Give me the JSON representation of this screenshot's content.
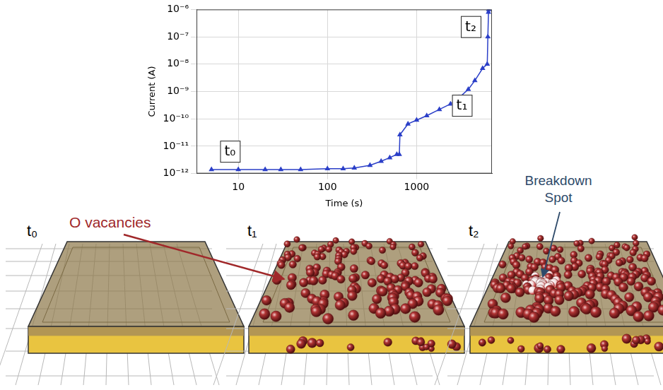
{
  "chart_data": {
    "type": "line",
    "x_label": "Time (s)",
    "y_label": "Current (A)",
    "log": true,
    "grid": true,
    "xlim": [
      3.4,
      7000
    ],
    "xticks": [
      10,
      100,
      1000
    ],
    "ylim": [
      1e-12,
      1e-06
    ],
    "yticks": [
      {
        "value": 1e-12,
        "label": "10⁻¹²"
      },
      {
        "value": 1e-11,
        "label": "10⁻¹¹"
      },
      {
        "value": 1e-10,
        "label": "10⁻¹⁰"
      },
      {
        "value": 1e-09,
        "label": "10⁻⁹"
      },
      {
        "value": 1e-08,
        "label": "10⁻⁸"
      },
      {
        "value": 1e-07,
        "label": "10⁻⁷"
      },
      {
        "value": 1e-06,
        "label": "10⁻⁶"
      }
    ],
    "x": [
      5,
      10,
      20,
      30,
      50,
      100,
      150,
      200,
      300,
      400,
      500,
      600,
      640,
      650,
      800,
      1000,
      1300,
      1800,
      2400,
      3000,
      3800,
      4500,
      5500,
      6200,
      6300,
      6400,
      6450
    ],
    "values": [
      1.4e-12,
      1.4e-12,
      1.4e-12,
      1.4e-12,
      1.4e-12,
      1.5e-12,
      1.5e-12,
      1.6e-12,
      2e-12,
      2.8e-12,
      3.8e-12,
      5e-12,
      5e-12,
      2.6e-11,
      6.5e-11,
      9e-11,
      1.3e-10,
      2.2e-10,
      3.5e-10,
      6e-10,
      1.2e-09,
      2.5e-09,
      7e-09,
      1e-08,
      1e-07,
      8e-07,
      1e-06
    ],
    "color": "#2b3fc8",
    "marker": "triangle",
    "annotations": [
      "t₀",
      "t₁",
      "t₂"
    ]
  },
  "diagram": {
    "panels": [
      {
        "label": "t₀"
      },
      {
        "label": "t₁"
      },
      {
        "label": "t₂"
      }
    ],
    "annotations": [
      {
        "text": "O vacancies",
        "color": "#a0282a"
      },
      {
        "text": "Breakdown Spot",
        "color": "#2e4a6a"
      }
    ]
  }
}
